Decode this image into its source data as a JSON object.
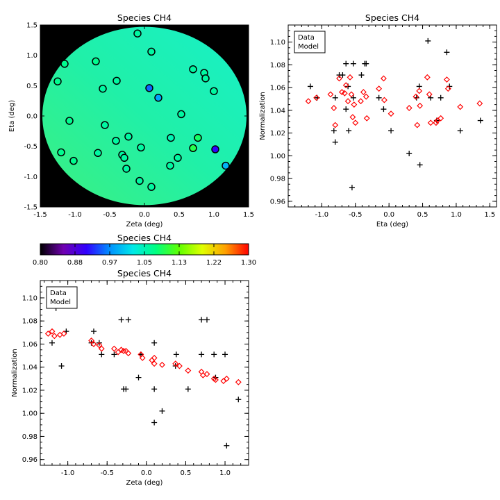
{
  "chart_data": [
    {
      "id": "map",
      "type": "scatter",
      "title": "Species CH4",
      "xlabel": "Zeta (deg)",
      "ylabel": "Eta (deg)",
      "xlim": [
        -1.5,
        1.5
      ],
      "ylim": [
        -1.5,
        1.5
      ],
      "xticks": [
        "-1.5",
        "-1.0",
        "-0.5",
        "0.0",
        "0.5",
        "1.0",
        "1.5"
      ],
      "yticks": [
        "-1.5",
        "-1.0",
        "-0.5",
        "0.0",
        "0.5",
        "1.0",
        "1.5"
      ],
      "background_color": "#000000",
      "field_colors": [
        "#3cf080",
        "#20f0a8",
        "#18f0c8"
      ],
      "points": [
        {
          "x": -0.1,
          "y": 1.36,
          "v": 1.06
        },
        {
          "x": 0.1,
          "y": 1.06,
          "v": 1.06
        },
        {
          "x": -0.7,
          "y": 0.9,
          "v": 1.07
        },
        {
          "x": -1.15,
          "y": 0.86,
          "v": 1.07
        },
        {
          "x": -1.25,
          "y": 0.57,
          "v": 1.07
        },
        {
          "x": -0.4,
          "y": 0.58,
          "v": 1.06
        },
        {
          "x": -0.6,
          "y": 0.45,
          "v": 1.06
        },
        {
          "x": 0.07,
          "y": 0.46,
          "v": 0.95
        },
        {
          "x": 0.2,
          "y": 0.3,
          "v": 0.98
        },
        {
          "x": 0.7,
          "y": 0.77,
          "v": 1.06
        },
        {
          "x": 0.86,
          "y": 0.71,
          "v": 1.06
        },
        {
          "x": 0.88,
          "y": 0.62,
          "v": 1.06
        },
        {
          "x": 1.0,
          "y": 0.41,
          "v": 1.06
        },
        {
          "x": 0.53,
          "y": 0.03,
          "v": 1.06
        },
        {
          "x": -1.08,
          "y": -0.08,
          "v": 1.07
        },
        {
          "x": -0.57,
          "y": -0.15,
          "v": 1.06
        },
        {
          "x": -0.41,
          "y": -0.41,
          "v": 1.06
        },
        {
          "x": -0.23,
          "y": -0.34,
          "v": 1.06
        },
        {
          "x": -0.05,
          "y": -0.52,
          "v": 1.06
        },
        {
          "x": 0.38,
          "y": -0.36,
          "v": 1.05
        },
        {
          "x": 0.77,
          "y": -0.36,
          "v": 1.09
        },
        {
          "x": 0.7,
          "y": -0.53,
          "v": 1.1
        },
        {
          "x": 1.02,
          "y": -0.55,
          "v": 0.91
        },
        {
          "x": -1.2,
          "y": -0.6,
          "v": 1.07
        },
        {
          "x": -1.02,
          "y": -0.74,
          "v": 1.07
        },
        {
          "x": -0.67,
          "y": -0.61,
          "v": 1.06
        },
        {
          "x": -0.32,
          "y": -0.64,
          "v": 1.06
        },
        {
          "x": -0.29,
          "y": -0.69,
          "v": 1.06
        },
        {
          "x": -0.26,
          "y": -0.87,
          "v": 1.06
        },
        {
          "x": 0.37,
          "y": -0.82,
          "v": 1.06
        },
        {
          "x": 0.48,
          "y": -0.69,
          "v": 1.06
        },
        {
          "x": -0.07,
          "y": -1.07,
          "v": 1.06
        },
        {
          "x": 0.1,
          "y": -1.17,
          "v": 1.06
        },
        {
          "x": 1.17,
          "y": -0.82,
          "v": 0.99
        }
      ]
    },
    {
      "id": "colorbar",
      "type": "heatmap",
      "title": "Species CH4",
      "range": [
        0.8,
        1.3
      ],
      "ticks": [
        "0.80",
        "0.88",
        "0.97",
        "1.05",
        "1.13",
        "1.22",
        "1.30"
      ],
      "colormap": [
        "#000000",
        "#7000b0",
        "#3000ff",
        "#0090ff",
        "#00e8e8",
        "#00ff80",
        "#60ff00",
        "#e0ff00",
        "#ffa000",
        "#ff0000"
      ]
    },
    {
      "id": "eta",
      "type": "scatter",
      "title": "Species CH4",
      "xlabel": "Eta (deg)",
      "ylabel": "Normalization",
      "xlim": [
        -1.5,
        1.6
      ],
      "ylim": [
        0.955,
        1.115
      ],
      "xticks": [
        "-1.0",
        "-0.5",
        "0.0",
        "0.5",
        "1.0",
        "1.5"
      ],
      "yticks": [
        "0.96",
        "0.98",
        "1.00",
        "1.02",
        "1.04",
        "1.06",
        "1.08",
        "1.10"
      ],
      "legend": {
        "position": "top-left",
        "entries": [
          {
            "label": "Data",
            "color": "#000000"
          },
          {
            "label": "Model",
            "color": "#ff0000"
          }
        ]
      },
      "series": [
        {
          "name": "Data",
          "marker": "plus",
          "color": "#000000",
          "points": [
            [
              -1.17,
              1.061
            ],
            [
              -1.07,
              1.051
            ],
            [
              -0.82,
              1.022
            ],
            [
              -0.8,
              1.012
            ],
            [
              -0.8,
              1.051
            ],
            [
              -0.74,
              1.071
            ],
            [
              -0.69,
              1.071
            ],
            [
              -0.64,
              1.081
            ],
            [
              -0.64,
              1.041
            ],
            [
              -0.61,
              1.061
            ],
            [
              -0.6,
              1.022
            ],
            [
              -0.55,
              0.972
            ],
            [
              -0.53,
              1.081
            ],
            [
              -0.53,
              1.051
            ],
            [
              -0.41,
              1.071
            ],
            [
              -0.36,
              1.081
            ],
            [
              -0.34,
              1.081
            ],
            [
              -0.15,
              1.051
            ],
            [
              -0.08,
              1.041
            ],
            [
              0.03,
              1.022
            ],
            [
              0.3,
              1.002
            ],
            [
              0.41,
              1.051
            ],
            [
              0.45,
              1.061
            ],
            [
              0.46,
              0.992
            ],
            [
              0.58,
              1.101
            ],
            [
              0.62,
              1.051
            ],
            [
              0.71,
              1.031
            ],
            [
              0.77,
              1.051
            ],
            [
              0.86,
              1.091
            ],
            [
              0.9,
              1.061
            ],
            [
              1.06,
              1.022
            ],
            [
              1.36,
              1.031
            ]
          ]
        },
        {
          "name": "Model",
          "marker": "diamond",
          "color": "#ff0000",
          "points": [
            [
              -1.2,
              1.048
            ],
            [
              -1.08,
              1.051
            ],
            [
              -0.87,
              1.054
            ],
            [
              -0.82,
              1.042
            ],
            [
              -0.8,
              1.027
            ],
            [
              -0.74,
              1.068
            ],
            [
              -0.7,
              1.056
            ],
            [
              -0.66,
              1.055
            ],
            [
              -0.64,
              1.062
            ],
            [
              -0.61,
              1.048
            ],
            [
              -0.58,
              1.069
            ],
            [
              -0.56,
              1.054
            ],
            [
              -0.54,
              1.034
            ],
            [
              -0.52,
              1.045
            ],
            [
              -0.5,
              1.029
            ],
            [
              -0.42,
              1.048
            ],
            [
              -0.38,
              1.056
            ],
            [
              -0.34,
              1.052
            ],
            [
              -0.33,
              1.033
            ],
            [
              -0.15,
              1.059
            ],
            [
              -0.08,
              1.068
            ],
            [
              -0.07,
              1.049
            ],
            [
              0.03,
              1.037
            ],
            [
              0.3,
              1.042
            ],
            [
              0.4,
              1.052
            ],
            [
              0.42,
              1.027
            ],
            [
              0.45,
              1.057
            ],
            [
              0.46,
              1.044
            ],
            [
              0.57,
              1.069
            ],
            [
              0.6,
              1.054
            ],
            [
              0.62,
              1.029
            ],
            [
              0.7,
              1.029
            ],
            [
              0.72,
              1.031
            ],
            [
              0.77,
              1.033
            ],
            [
              0.86,
              1.067
            ],
            [
              0.88,
              1.059
            ],
            [
              1.06,
              1.043
            ],
            [
              1.35,
              1.046
            ]
          ]
        }
      ]
    },
    {
      "id": "zeta",
      "type": "scatter",
      "title": "Species CH4",
      "xlabel": "Zeta (deg)",
      "ylabel": "Normalization",
      "xlim": [
        -1.35,
        1.3
      ],
      "ylim": [
        0.955,
        1.115
      ],
      "xticks": [
        "-1.0",
        "-0.5",
        "0.0",
        "0.5",
        "1.0"
      ],
      "yticks": [
        "0.96",
        "0.98",
        "1.00",
        "1.02",
        "1.04",
        "1.06",
        "1.08",
        "1.10"
      ],
      "legend": {
        "position": "top-left",
        "entries": [
          {
            "label": "Data",
            "color": "#000000"
          },
          {
            "label": "Model",
            "color": "#ff0000"
          }
        ]
      },
      "series": [
        {
          "name": "Data",
          "marker": "plus",
          "color": "#000000",
          "points": [
            [
              -1.2,
              1.061
            ],
            [
              -1.15,
              1.091
            ],
            [
              -1.08,
              1.041
            ],
            [
              -1.02,
              1.071
            ],
            [
              -0.7,
              1.061
            ],
            [
              -0.67,
              1.071
            ],
            [
              -0.6,
              1.061
            ],
            [
              -0.57,
              1.051
            ],
            [
              -0.41,
              1.051
            ],
            [
              -0.32,
              1.081
            ],
            [
              -0.29,
              1.021
            ],
            [
              -0.26,
              1.021
            ],
            [
              -0.23,
              1.081
            ],
            [
              -0.1,
              1.031
            ],
            [
              -0.07,
              1.051
            ],
            [
              0.1,
              1.061
            ],
            [
              0.1,
              0.992
            ],
            [
              0.1,
              1.021
            ],
            [
              0.2,
              1.002
            ],
            [
              0.38,
              1.051
            ],
            [
              0.37,
              1.041
            ],
            [
              0.53,
              1.021
            ],
            [
              0.7,
              1.081
            ],
            [
              0.7,
              1.051
            ],
            [
              0.77,
              1.081
            ],
            [
              0.86,
              1.051
            ],
            [
              0.88,
              1.031
            ],
            [
              1.0,
              1.051
            ],
            [
              1.02,
              0.972
            ],
            [
              1.17,
              1.012
            ]
          ]
        },
        {
          "name": "Model",
          "marker": "diamond",
          "color": "#ff0000",
          "points": [
            [
              -1.25,
              1.069
            ],
            [
              -1.2,
              1.071
            ],
            [
              -1.17,
              1.067
            ],
            [
              -1.1,
              1.068
            ],
            [
              -1.05,
              1.069
            ],
            [
              -0.7,
              1.063
            ],
            [
              -0.67,
              1.06
            ],
            [
              -0.6,
              1.059
            ],
            [
              -0.57,
              1.056
            ],
            [
              -0.41,
              1.056
            ],
            [
              -0.36,
              1.053
            ],
            [
              -0.32,
              1.055
            ],
            [
              -0.29,
              1.054
            ],
            [
              -0.26,
              1.054
            ],
            [
              -0.23,
              1.052
            ],
            [
              -0.07,
              1.051
            ],
            [
              -0.05,
              1.048
            ],
            [
              0.07,
              1.046
            ],
            [
              0.1,
              1.048
            ],
            [
              0.1,
              1.043
            ],
            [
              0.2,
              1.042
            ],
            [
              0.37,
              1.043
            ],
            [
              0.42,
              1.041
            ],
            [
              0.53,
              1.037
            ],
            [
              0.7,
              1.036
            ],
            [
              0.72,
              1.033
            ],
            [
              0.77,
              1.034
            ],
            [
              0.86,
              1.03
            ],
            [
              0.88,
              1.029
            ],
            [
              0.98,
              1.028
            ],
            [
              1.02,
              1.03
            ],
            [
              1.17,
              1.027
            ]
          ]
        }
      ]
    }
  ]
}
